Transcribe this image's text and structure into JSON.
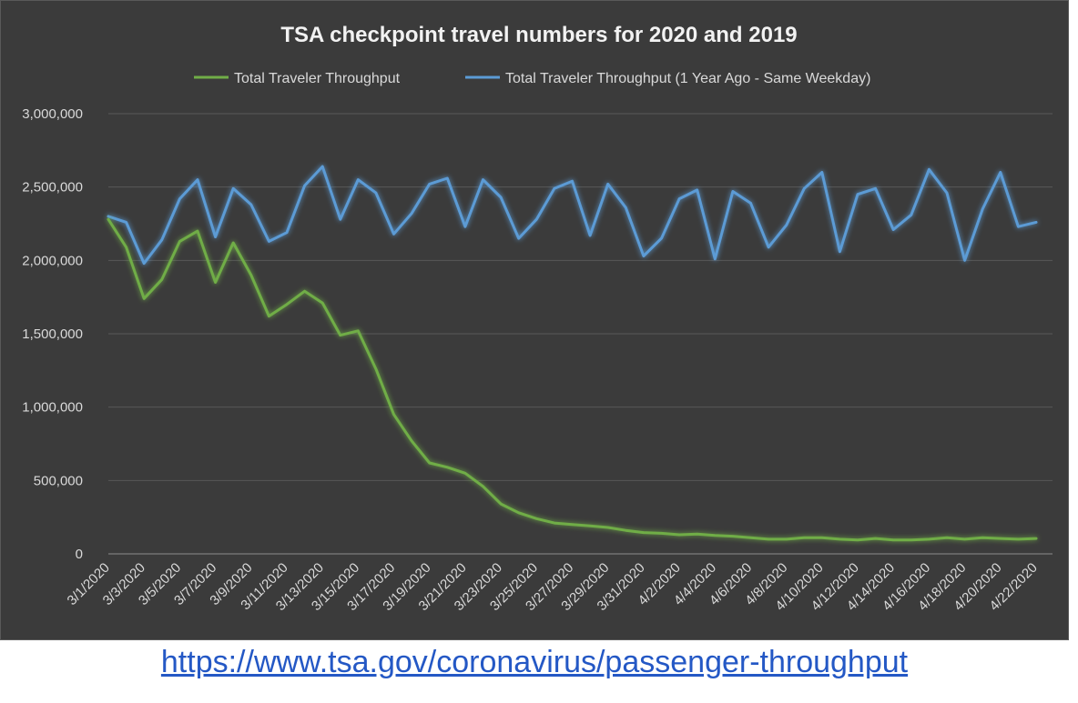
{
  "chart_data": {
    "type": "line",
    "title": "TSA checkpoint travel numbers for 2020 and 2019",
    "xlabel": "",
    "ylabel": "",
    "ylim": [
      0,
      3000000
    ],
    "y_ticks": [
      {
        "value": 0,
        "label": "0"
      },
      {
        "value": 500000,
        "label": "500,000"
      },
      {
        "value": 1000000,
        "label": "1,000,000"
      },
      {
        "value": 1500000,
        "label": "1,500,000"
      },
      {
        "value": 2000000,
        "label": "2,000,000"
      },
      {
        "value": 2500000,
        "label": "2,500,000"
      },
      {
        "value": 3000000,
        "label": "3,000,000"
      }
    ],
    "grid": true,
    "legend_position": "top",
    "categories": [
      "3/1/2020",
      "3/2/2020",
      "3/3/2020",
      "3/4/2020",
      "3/5/2020",
      "3/6/2020",
      "3/7/2020",
      "3/8/2020",
      "3/9/2020",
      "3/10/2020",
      "3/11/2020",
      "3/12/2020",
      "3/13/2020",
      "3/14/2020",
      "3/15/2020",
      "3/16/2020",
      "3/17/2020",
      "3/18/2020",
      "3/19/2020",
      "3/20/2020",
      "3/21/2020",
      "3/22/2020",
      "3/23/2020",
      "3/24/2020",
      "3/25/2020",
      "3/26/2020",
      "3/27/2020",
      "3/28/2020",
      "3/29/2020",
      "3/30/2020",
      "3/31/2020",
      "4/1/2020",
      "4/2/2020",
      "4/3/2020",
      "4/4/2020",
      "4/5/2020",
      "4/6/2020",
      "4/7/2020",
      "4/8/2020",
      "4/9/2020",
      "4/10/2020",
      "4/11/2020",
      "4/12/2020",
      "4/13/2020",
      "4/14/2020",
      "4/15/2020",
      "4/16/2020",
      "4/17/2020",
      "4/18/2020",
      "4/19/2020",
      "4/20/2020",
      "4/21/2020",
      "4/22/2020"
    ],
    "x_tick_labels": [
      "3/1/2020",
      "3/3/2020",
      "3/5/2020",
      "3/7/2020",
      "3/9/2020",
      "3/11/2020",
      "3/13/2020",
      "3/15/2020",
      "3/17/2020",
      "3/19/2020",
      "3/21/2020",
      "3/23/2020",
      "3/25/2020",
      "3/27/2020",
      "3/29/2020",
      "3/31/2020",
      "4/2/2020",
      "4/4/2020",
      "4/6/2020",
      "4/8/2020",
      "4/10/2020",
      "4/12/2020",
      "4/14/2020",
      "4/16/2020",
      "4/18/2020",
      "4/20/2020",
      "4/22/2020"
    ],
    "series": [
      {
        "name": "Total Traveler Throughput",
        "color": "#70ad47",
        "values": [
          2280000,
          2090000,
          1740000,
          1870000,
          2130000,
          2200000,
          1850000,
          2120000,
          1900000,
          1620000,
          1700000,
          1790000,
          1710000,
          1490000,
          1520000,
          1260000,
          950000,
          770000,
          620000,
          590000,
          550000,
          460000,
          340000,
          280000,
          240000,
          210000,
          200000,
          190000,
          180000,
          160000,
          145000,
          140000,
          130000,
          135000,
          125000,
          120000,
          110000,
          100000,
          100000,
          110000,
          110000,
          100000,
          95000,
          105000,
          95000,
          95000,
          100000,
          110000,
          100000,
          110000,
          105000,
          100000,
          105000
        ]
      },
      {
        "name": "Total Traveler Throughput (1 Year Ago - Same Weekday)",
        "color": "#5b9bd5",
        "values": [
          2300000,
          2260000,
          1980000,
          2140000,
          2420000,
          2550000,
          2160000,
          2490000,
          2380000,
          2130000,
          2190000,
          2510000,
          2640000,
          2280000,
          2550000,
          2460000,
          2180000,
          2320000,
          2520000,
          2560000,
          2230000,
          2550000,
          2430000,
          2150000,
          2280000,
          2490000,
          2540000,
          2170000,
          2520000,
          2360000,
          2030000,
          2150000,
          2420000,
          2480000,
          2010000,
          2470000,
          2390000,
          2090000,
          2240000,
          2490000,
          2600000,
          2060000,
          2450000,
          2490000,
          2210000,
          2310000,
          2620000,
          2460000,
          2000000,
          2350000,
          2600000,
          2230000,
          2260000
        ]
      }
    ]
  },
  "source_link": "https://www.tsa.gov/coronavirus/passenger-throughput"
}
